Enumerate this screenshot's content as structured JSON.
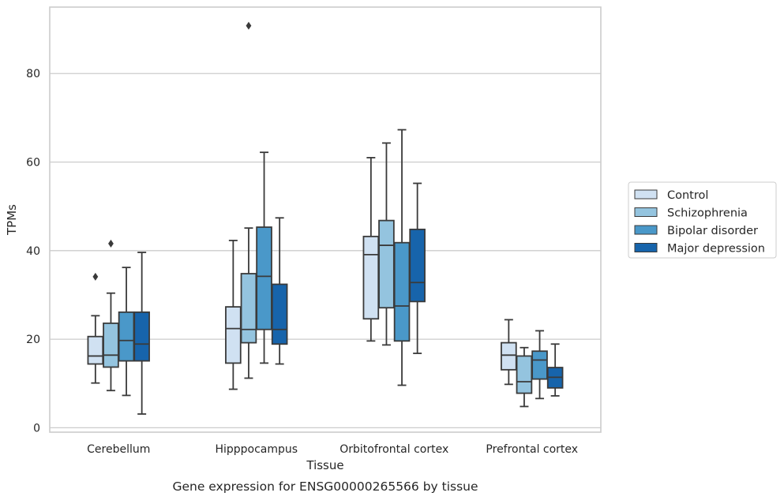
{
  "chart_data": {
    "type": "box",
    "title": "",
    "caption": "Gene expression for ENSG00000265566 by tissue",
    "xlabel": "Tissue",
    "ylabel": "TPMs",
    "ylim": [
      -1,
      95
    ],
    "yticks": [
      0,
      20,
      40,
      60,
      80
    ],
    "grid": "horizontal",
    "legend_position": "right",
    "categories": [
      "Cerebellum",
      "Hipppocampus",
      "Orbitofrontal cortex",
      "Prefrontal cortex"
    ],
    "series": [
      {
        "name": "Control",
        "color": "#d0e1f2",
        "boxes": [
          {
            "whislo": 10.1,
            "q1": 14.4,
            "med": 16.2,
            "q3": 20.6,
            "whishi": 25.3,
            "fliers": [
              34.1
            ]
          },
          {
            "whislo": 8.7,
            "q1": 14.6,
            "med": 22.4,
            "q3": 27.3,
            "whishi": 42.3,
            "fliers": []
          },
          {
            "whislo": 19.6,
            "q1": 24.6,
            "med": 39.1,
            "q3": 43.2,
            "whishi": 61.0,
            "fliers": []
          },
          {
            "whislo": 9.8,
            "q1": 13.1,
            "med": 16.4,
            "q3": 19.2,
            "whishi": 24.4,
            "fliers": []
          }
        ]
      },
      {
        "name": "Schizophrenia",
        "color": "#94c4df",
        "boxes": [
          {
            "whislo": 8.4,
            "q1": 13.7,
            "med": 16.4,
            "q3": 23.6,
            "whishi": 30.4,
            "fliers": [
              41.6
            ]
          },
          {
            "whislo": 11.2,
            "q1": 19.2,
            "med": 22.2,
            "q3": 34.8,
            "whishi": 45.1,
            "fliers": [
              90.8
            ]
          },
          {
            "whislo": 18.7,
            "q1": 27.1,
            "med": 41.2,
            "q3": 46.8,
            "whishi": 64.3,
            "fliers": []
          },
          {
            "whislo": 4.8,
            "q1": 7.8,
            "med": 10.4,
            "q3": 16.2,
            "whishi": 18.1,
            "fliers": []
          }
        ]
      },
      {
        "name": "Bipolar disorder",
        "color": "#4a98c9",
        "boxes": [
          {
            "whislo": 7.3,
            "q1": 15.1,
            "med": 19.7,
            "q3": 26.1,
            "whishi": 36.2,
            "fliers": []
          },
          {
            "whislo": 14.6,
            "q1": 22.2,
            "med": 34.2,
            "q3": 45.3,
            "whishi": 62.2,
            "fliers": []
          },
          {
            "whislo": 9.6,
            "q1": 19.6,
            "med": 27.5,
            "q3": 41.8,
            "whishi": 67.3,
            "fliers": []
          },
          {
            "whislo": 6.6,
            "q1": 11.0,
            "med": 15.3,
            "q3": 17.3,
            "whishi": 21.9,
            "fliers": []
          }
        ]
      },
      {
        "name": "Major depression",
        "color": "#1764ab",
        "boxes": [
          {
            "whislo": 3.1,
            "q1": 15.1,
            "med": 18.9,
            "q3": 26.1,
            "whishi": 39.6,
            "fliers": []
          },
          {
            "whislo": 14.4,
            "q1": 18.9,
            "med": 22.2,
            "q3": 32.4,
            "whishi": 47.4,
            "fliers": []
          },
          {
            "whislo": 16.8,
            "q1": 28.5,
            "med": 32.8,
            "q3": 44.8,
            "whishi": 55.2,
            "fliers": []
          },
          {
            "whislo": 7.2,
            "q1": 9.0,
            "med": 11.4,
            "q3": 13.6,
            "whishi": 18.9,
            "fliers": []
          }
        ]
      }
    ]
  }
}
